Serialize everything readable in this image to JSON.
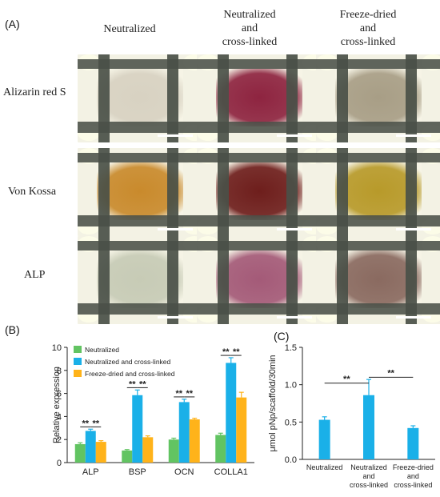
{
  "panel_a": {
    "label": "(A)",
    "column_headers": [
      {
        "lines": [
          "Neutralized"
        ]
      },
      {
        "lines": [
          "Neutralized",
          "and",
          "cross-linked"
        ]
      },
      {
        "lines": [
          "Freeze-dried",
          "and",
          "cross-linked"
        ]
      }
    ],
    "row_headers": [
      "Alizarin red S",
      "Von Kossa",
      "ALP"
    ],
    "tile_colors": {
      "alizarin": [
        "#d8d2c2",
        "#8e2440",
        "#a89e86"
      ],
      "vonkossa": [
        "#c98a2c",
        "#6e1e1c",
        "#b89a2a"
      ],
      "alp": [
        "#c7cbb6",
        "#a45a78",
        "#8a6a60"
      ]
    }
  },
  "panel_b": {
    "label": "(B)",
    "chart_data": {
      "type": "bar",
      "categories": [
        "ALP",
        "BSP",
        "OCN",
        "COLLA1"
      ],
      "ylabel": "Relative expression",
      "xlabel": "",
      "ylim": [
        0,
        10
      ],
      "yticks": [
        0,
        2,
        4,
        6,
        8,
        10
      ],
      "legend_position": "top-left",
      "grid": false,
      "series": [
        {
          "name": "Neutralized",
          "color": "#62c462",
          "values": [
            1.6,
            1.05,
            2.0,
            2.4
          ],
          "errors": [
            0.12,
            0.08,
            0.12,
            0.15
          ]
        },
        {
          "name": "Neutralized and cross-linked",
          "color": "#1ab0e8",
          "values": [
            2.75,
            5.85,
            5.25,
            8.65
          ],
          "errors": [
            0.15,
            0.45,
            0.25,
            0.45
          ]
        },
        {
          "name": "Freeze-dried and cross-linked",
          "color": "#ffb31a",
          "values": [
            1.8,
            2.2,
            3.75,
            5.65
          ],
          "errors": [
            0.1,
            0.12,
            0.1,
            0.45
          ]
        }
      ],
      "significance": [
        {
          "category": 0,
          "pairs": [
            [
              0,
              1
            ],
            [
              1,
              2
            ]
          ],
          "y": [
            3.1,
            3.1
          ],
          "label": "**"
        },
        {
          "category": 1,
          "pairs": [
            [
              0,
              1
            ],
            [
              1,
              2
            ]
          ],
          "y": [
            6.5,
            6.5
          ],
          "label": "**"
        },
        {
          "category": 2,
          "pairs": [
            [
              0,
              1
            ],
            [
              1,
              2
            ]
          ],
          "y": [
            5.7,
            5.7
          ],
          "label": "**"
        },
        {
          "category": 3,
          "pairs": [
            [
              0,
              1
            ],
            [
              1,
              2
            ]
          ],
          "y": [
            9.3,
            9.3
          ],
          "label": "**"
        }
      ]
    }
  },
  "panel_c": {
    "label": "(C)",
    "chart_data": {
      "type": "bar",
      "categories": [
        {
          "lines": [
            "Neutralized"
          ]
        },
        {
          "lines": [
            "Neutralized",
            "and",
            "cross-linked"
          ]
        },
        {
          "lines": [
            "Freeze-dried",
            "and",
            "cross-linked"
          ]
        }
      ],
      "ylabel": "μmol pNp/scaffold/30min",
      "xlabel": "",
      "ylim": [
        0,
        1.5
      ],
      "yticks": [
        "0.0",
        "0.5",
        "1.0",
        "1.5"
      ],
      "grid": false,
      "color": "#1ab0e8",
      "values": [
        0.53,
        0.86,
        0.42
      ],
      "errors": [
        0.04,
        0.21,
        0.03
      ],
      "significance": [
        {
          "from": 0,
          "to": 1,
          "y": 1.02,
          "label": "**"
        },
        {
          "from": 1,
          "to": 2,
          "y": 1.1,
          "label": "**"
        }
      ]
    }
  }
}
